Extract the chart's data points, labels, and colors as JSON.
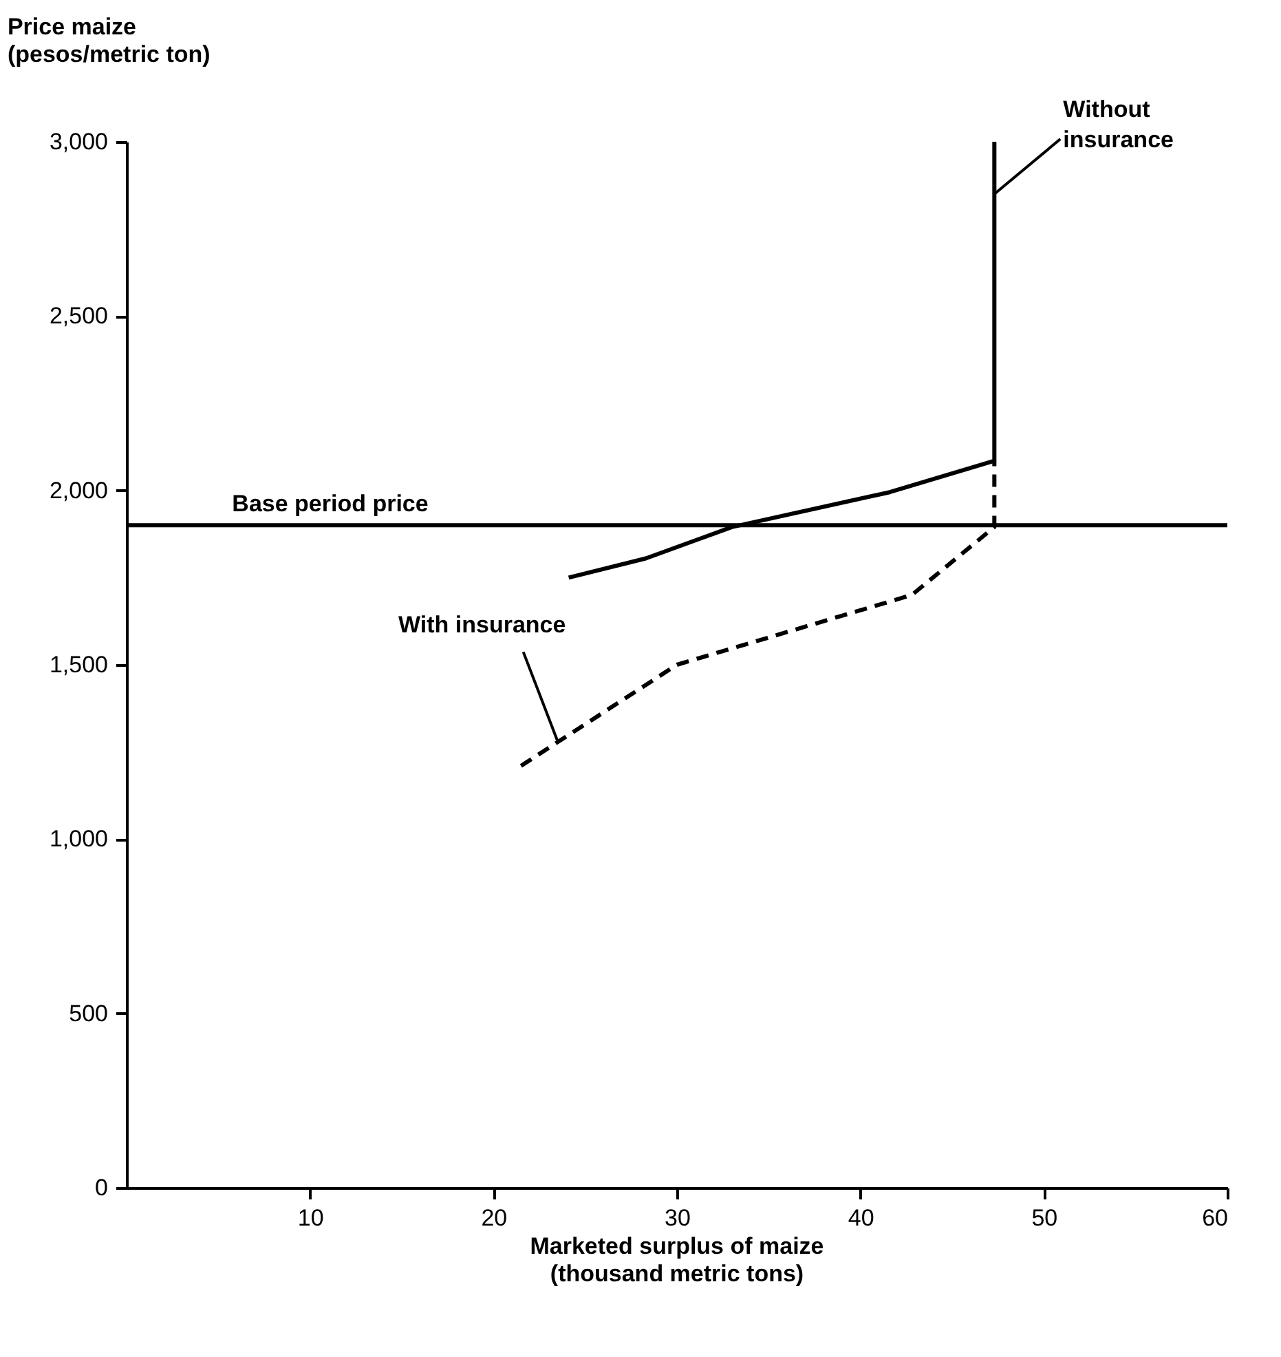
{
  "chart_data": {
    "type": "line",
    "ylabel": "Price maize\n(pesos/metric ton)",
    "xlabel": "Marketed surplus of maize\n(thousand metric tons)",
    "xlim": [
      0,
      60
    ],
    "xticks": [
      10,
      20,
      30,
      40,
      50,
      60
    ],
    "ylim": [
      0,
      3000
    ],
    "yticks": [
      0,
      500,
      {
        "value": 1000,
        "label": "1,000"
      },
      {
        "value": 1500,
        "label": "1,500"
      },
      {
        "value": 2000,
        "label": "2,000"
      },
      {
        "value": 2500,
        "label": "2,500"
      },
      {
        "value": 3000,
        "label": "3,000"
      }
    ],
    "grid": false,
    "marker": "none",
    "series": [
      {
        "color": "#000000",
        "line_style": "solid",
        "x": [
          24.1,
          28.3,
          33,
          41.6,
          47.3,
          47.3
        ],
        "values": [
          1750,
          1805,
          1895,
          1995,
          2085,
          3000
        ]
      },
      {
        "color": "#000000",
        "line_style": "dashed",
        "x": [
          21.5,
          30,
          42.8,
          47.3,
          47.3
        ],
        "values": [
          1210,
          1500,
          1700,
          1895,
          2085
        ]
      }
    ],
    "ref_lines": [
      {
        "axis": "y",
        "value": 1900,
        "label": "Base period price",
        "color": "#000000",
        "line_style": "solid"
      }
    ],
    "annotations": [
      {
        "text": "With insurance",
        "x": 23.5,
        "y": 1280
      },
      {
        "text": "Without\ninsurance",
        "x": 47.3,
        "y": 2850
      }
    ]
  }
}
